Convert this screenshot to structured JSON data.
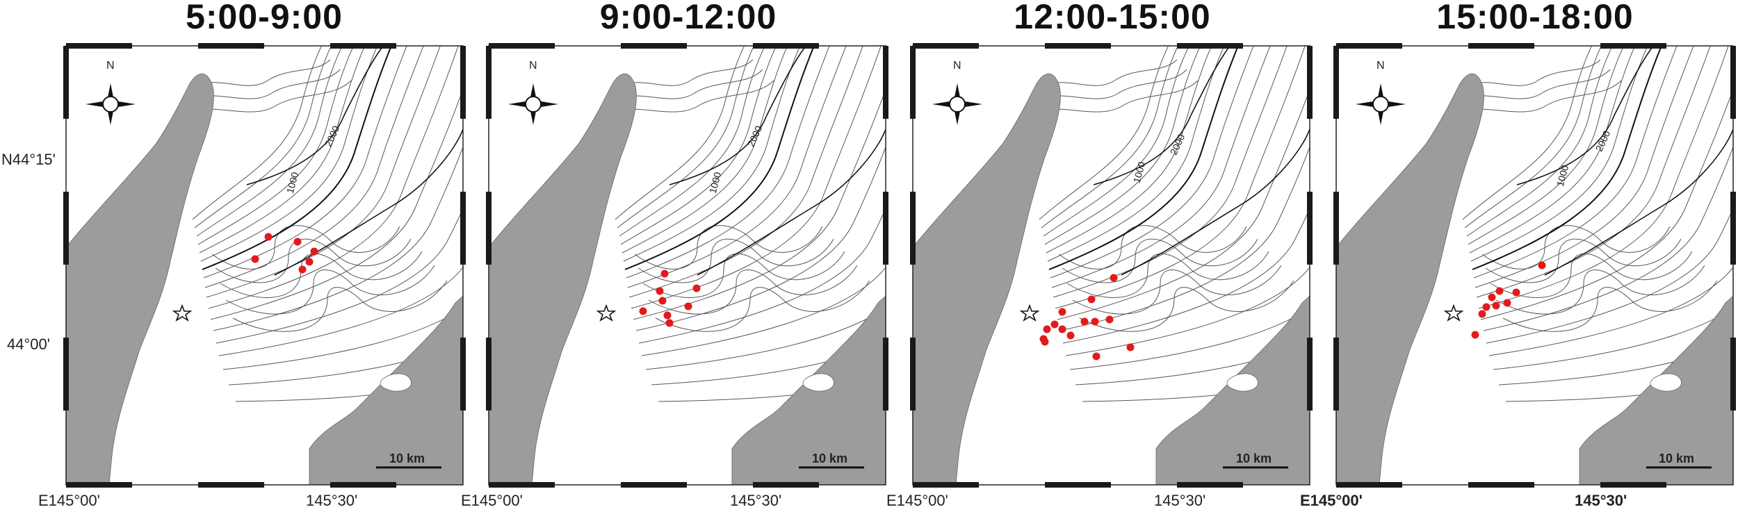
{
  "panels": [
    {
      "title": "5:00-9:00",
      "points": [
        [
          386,
          341
        ],
        [
          428,
          348
        ],
        [
          452,
          362
        ],
        [
          445,
          377
        ],
        [
          435,
          388
        ],
        [
          367,
          373
        ]
      ]
    },
    {
      "title": "9:00-12:00",
      "points": [
        [
          956,
          394
        ],
        [
          949,
          419
        ],
        [
          1002,
          415
        ],
        [
          953,
          433
        ],
        [
          990,
          441
        ],
        [
          925,
          448
        ],
        [
          960,
          454
        ],
        [
          963,
          465
        ]
      ]
    },
    {
      "title": "12:00-15:00",
      "points": [
        [
          1602,
          400
        ],
        [
          1570,
          431
        ],
        [
          1528,
          449
        ],
        [
          1596,
          460
        ],
        [
          1517,
          467
        ],
        [
          1560,
          463
        ],
        [
          1575,
          463
        ],
        [
          1506,
          474
        ],
        [
          1528,
          474
        ],
        [
          1540,
          483
        ],
        [
          1501,
          488
        ],
        [
          1503,
          492
        ],
        [
          1626,
          500
        ],
        [
          1577,
          513
        ]
      ]
    },
    {
      "title": "15:00-18:00",
      "points": [
        [
          2218,
          382
        ],
        [
          2157,
          419
        ],
        [
          2181,
          421
        ],
        [
          2146,
          428
        ],
        [
          2168,
          436
        ],
        [
          2138,
          442
        ],
        [
          2152,
          440
        ],
        [
          2132,
          452
        ],
        [
          2122,
          482
        ]
      ]
    }
  ],
  "axes": {
    "lat_label_top": "N44°15'",
    "lat_label_bottom": "44°00'",
    "lon_label_left": "E145°00'",
    "lon_label_right": "145°30'"
  },
  "contours": {
    "label_1": "1000",
    "label_2": "2000"
  },
  "scale_bar": {
    "label": "10 km"
  },
  "compass": {
    "label": "N"
  },
  "colors": {
    "land": "#9c9c9c",
    "point": "#e31a1c",
    "contour": "#444444"
  }
}
